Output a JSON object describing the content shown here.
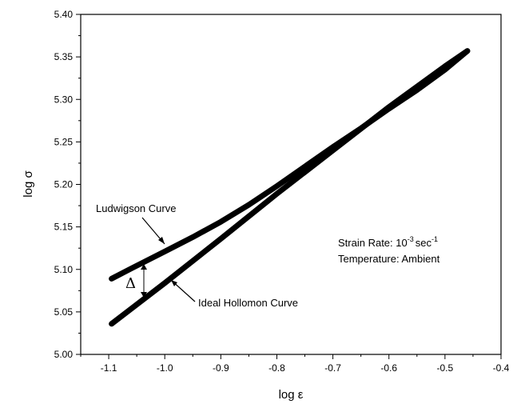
{
  "chart_data": {
    "type": "line",
    "title": "",
    "xlabel": "log ε",
    "ylabel": "log σ",
    "xlim": [
      -1.15,
      -0.4
    ],
    "ylim": [
      5.0,
      5.4
    ],
    "x_ticks": [
      "-1.1",
      "-1.0",
      "-0.9",
      "-0.8",
      "-0.7",
      "-0.6",
      "-0.5",
      "-0.4"
    ],
    "y_ticks": [
      "5.00",
      "5.05",
      "5.10",
      "5.15",
      "5.20",
      "5.25",
      "5.30",
      "5.35",
      "5.40"
    ],
    "grid": false,
    "series": [
      {
        "name": "Ludwigson Curve",
        "x": [
          -1.095,
          -1.06,
          -1.0,
          -0.95,
          -0.9,
          -0.85,
          -0.8,
          -0.75,
          -0.7,
          -0.65,
          -0.6,
          -0.55,
          -0.5,
          -0.46
        ],
        "y": [
          5.089,
          5.101,
          5.121,
          5.138,
          5.156,
          5.176,
          5.198,
          5.221,
          5.244,
          5.266,
          5.289,
          5.311,
          5.335,
          5.357
        ]
      },
      {
        "name": "Ideal Hollomon Curve",
        "x": [
          -1.095,
          -1.0,
          -0.9,
          -0.8,
          -0.7,
          -0.6,
          -0.5,
          -0.46
        ],
        "y": [
          5.036,
          5.084,
          5.136,
          5.189,
          5.24,
          5.291,
          5.339,
          5.357
        ]
      }
    ],
    "annotations": {
      "ludwigson_label": "Ludwigson Curve",
      "hollomon_label": "Ideal Hollomon Curve",
      "delta_label": "Δ",
      "strain_rate_prefix": "Strain Rate: 10",
      "strain_rate_exp": "-3",
      "strain_rate_unit": "sec",
      "strain_rate_unit_exp": "-1",
      "temperature": "Temperature: Ambient"
    }
  }
}
